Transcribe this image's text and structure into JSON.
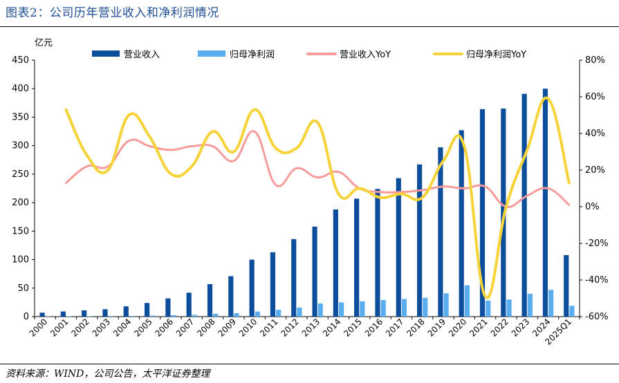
{
  "header": {
    "title": "图表2：公司历年营业收入和净利润情况"
  },
  "footer": {
    "source": "资料来源：WIND，公司公告，太平洋证券整理"
  },
  "chart_data": {
    "type": "bar",
    "ylabel": "亿元",
    "categories": [
      "2000",
      "2001",
      "2002",
      "2003",
      "2004",
      "2005",
      "2006",
      "2007",
      "2008",
      "2009",
      "2010",
      "2011",
      "2012",
      "2013",
      "2014",
      "2015",
      "2016",
      "2017",
      "2018",
      "2019",
      "2020",
      "2021",
      "2022",
      "2023",
      "2024",
      "2025Q1"
    ],
    "ylim": [
      0,
      450
    ],
    "yticks": [
      0,
      50,
      100,
      150,
      200,
      250,
      300,
      350,
      400,
      450
    ],
    "y2lim": [
      -60,
      80
    ],
    "y2ticks": [
      "-60%",
      "-40%",
      "-20%",
      "0%",
      "20%",
      "40%",
      "60%",
      "80%"
    ],
    "legend_position": "top",
    "series": [
      {
        "name": "营业收入",
        "type": "bar",
        "axis": "left",
        "color": "#0d4e9c",
        "values": [
          7,
          9,
          11,
          13,
          18,
          24,
          32,
          42,
          57,
          71,
          100,
          113,
          136,
          158,
          188,
          207,
          224,
          243,
          267,
          297,
          327,
          364,
          365,
          391,
          400,
          108
        ]
      },
      {
        "name": "归母净利润",
        "type": "bar",
        "axis": "left",
        "color": "#5aaeef",
        "values": [
          0.5,
          0.6,
          0.8,
          1,
          1.3,
          1.8,
          2.5,
          3,
          5,
          6,
          9,
          12,
          16,
          23,
          25,
          27,
          29,
          31,
          33,
          41,
          55,
          28,
          30,
          40,
          47,
          19
        ]
      },
      {
        "name": "营业收入YoY",
        "type": "line",
        "axis": "right",
        "color": "#f79a9a",
        "values": [
          null,
          13,
          22,
          22,
          36,
          33,
          31,
          33,
          33,
          25,
          41,
          12,
          21,
          16,
          19,
          10,
          8,
          8,
          9,
          11,
          10,
          11,
          0,
          6,
          10,
          1
        ]
      },
      {
        "name": "归母净利润YoY",
        "type": "line",
        "axis": "right",
        "color": "#f7d33a",
        "values": [
          null,
          53,
          28,
          20,
          50,
          38,
          18,
          22,
          41,
          30,
          53,
          32,
          32,
          46,
          7,
          10,
          5,
          7,
          5,
          25,
          33,
          -49,
          0,
          31,
          59,
          13
        ]
      }
    ]
  }
}
